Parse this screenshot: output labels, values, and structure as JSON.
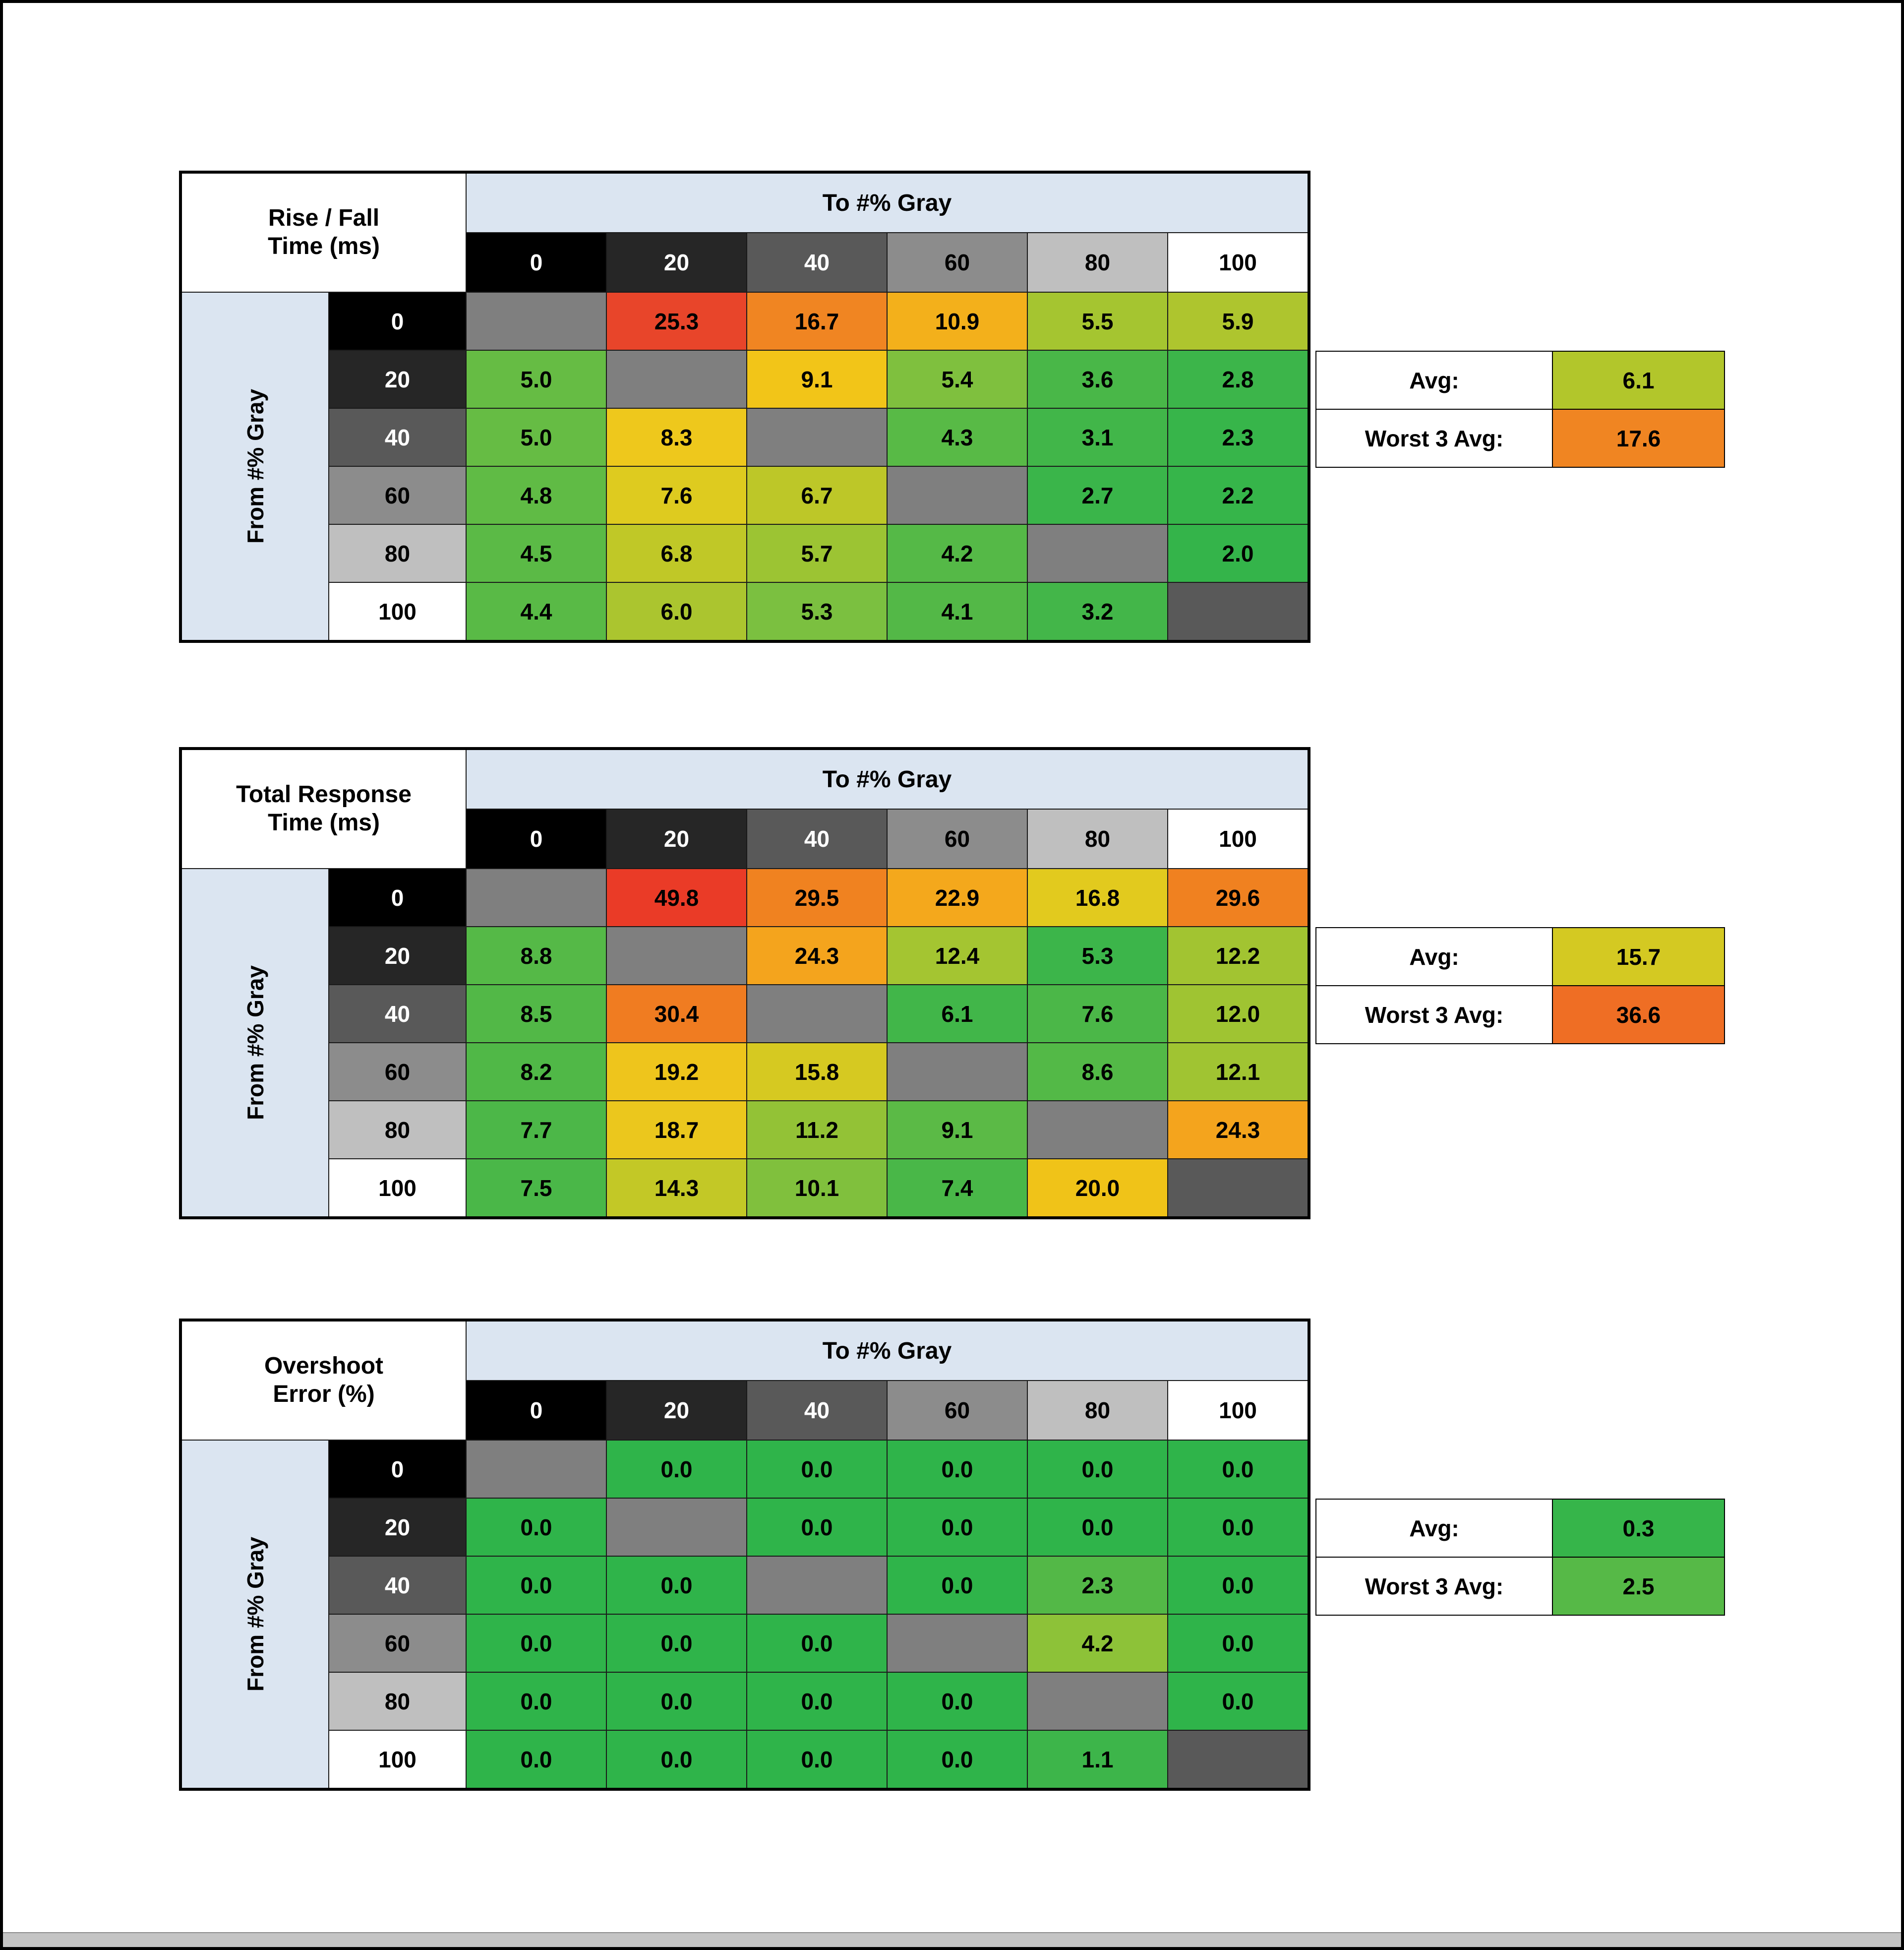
{
  "style": {
    "band_bg": "#dbe5f1",
    "header_steps_bg": [
      "#000000",
      "#262626",
      "#595959",
      "#8c8c8c",
      "#bfbfbf",
      "#ffffff"
    ],
    "header_steps_fg": [
      "#ffffff",
      "#ffffff",
      "#ffffff",
      "#000000",
      "#000000",
      "#000000"
    ],
    "diagonal_bg": [
      "#7f7f7f",
      "#7f7f7f",
      "#7f7f7f",
      "#7f7f7f",
      "#7f7f7f",
      "#595959"
    ],
    "grid_line": "#1a1a1a",
    "outer_border": "#000000",
    "bottom_strip": "#c4c4c4"
  },
  "shared": {
    "to_axis_label": "To #% Gray",
    "from_axis_label": "From #% Gray",
    "gray_levels": [
      "0",
      "20",
      "40",
      "60",
      "80",
      "100"
    ],
    "avg_label": "Avg:",
    "worst_label": "Worst 3 Avg:"
  },
  "chart_data": [
    {
      "type": "heatmap",
      "title": "Rise / Fall Time (ms)",
      "title_lines": [
        "Rise / Fall",
        "Time (ms)"
      ],
      "x_label": "To #% Gray",
      "y_label": "From #% Gray",
      "columns": [
        0,
        20,
        40,
        60,
        80,
        100
      ],
      "rows": [
        0,
        20,
        40,
        60,
        80,
        100
      ],
      "values": [
        [
          null,
          25.3,
          16.7,
          10.9,
          5.5,
          5.9
        ],
        [
          5.0,
          null,
          9.1,
          5.4,
          3.6,
          2.8
        ],
        [
          5.0,
          8.3,
          null,
          4.3,
          3.1,
          2.3
        ],
        [
          4.8,
          7.6,
          6.7,
          null,
          2.7,
          2.2
        ],
        [
          4.5,
          6.8,
          5.7,
          4.2,
          null,
          2.0
        ],
        [
          4.4,
          6.0,
          5.3,
          4.1,
          3.2,
          null
        ]
      ],
      "cell_colors": [
        [
          null,
          "#e8452a",
          "#f08522",
          "#f3b01b",
          "#a5c530",
          "#aec52e"
        ],
        [
          "#66bc44",
          null,
          "#f2c518",
          "#7fc03e",
          "#49b748",
          "#3cb54a"
        ],
        [
          "#66bc44",
          "#eec81c",
          null,
          "#58ba46",
          "#41b649",
          "#37b54a"
        ],
        [
          "#60bb45",
          "#decb1f",
          "#bdc728",
          null,
          "#3ab54a",
          "#36b54a"
        ],
        [
          "#5bba46",
          "#c0c827",
          "#9cc433",
          "#55b947",
          null,
          "#34b44a"
        ],
        [
          "#59ba46",
          "#abc52f",
          "#7bc040",
          "#53b847",
          "#43b649",
          null
        ]
      ],
      "summary": {
        "avg": 6.1,
        "avg_color": "#b2c62b",
        "worst3_avg": 17.6,
        "worst_color": "#f08522"
      }
    },
    {
      "type": "heatmap",
      "title": "Total Response Time (ms)",
      "title_lines": [
        "Total Response",
        "Time (ms)"
      ],
      "x_label": "To #% Gray",
      "y_label": "From #% Gray",
      "columns": [
        0,
        20,
        40,
        60,
        80,
        100
      ],
      "rows": [
        0,
        20,
        40,
        60,
        80,
        100
      ],
      "values": [
        [
          null,
          49.8,
          29.5,
          22.9,
          16.8,
          29.6
        ],
        [
          8.8,
          null,
          24.3,
          12.4,
          5.3,
          12.2
        ],
        [
          8.5,
          30.4,
          null,
          6.1,
          7.6,
          12.0
        ],
        [
          8.2,
          19.2,
          15.8,
          null,
          8.6,
          12.1
        ],
        [
          7.7,
          18.7,
          11.2,
          9.1,
          null,
          24.3
        ],
        [
          7.5,
          14.3,
          10.1,
          7.4,
          20.0,
          null
        ]
      ],
      "cell_colors": [
        [
          null,
          "#ea3b27",
          "#f08220",
          "#f4a81c",
          "#e2ca1e",
          "#f08120"
        ],
        [
          "#55b947",
          null,
          "#f4a41d",
          "#a4c531",
          "#3cb54a",
          "#a2c431"
        ],
        [
          "#52b847",
          "#f07c21",
          null,
          "#41b649",
          "#4bb748",
          "#9fc432"
        ],
        [
          "#50b847",
          "#eec51c",
          "#d6c921",
          null,
          "#53b947",
          "#a0c432"
        ],
        [
          "#4cb748",
          "#ebc71d",
          "#93c236",
          "#5bba46",
          null,
          "#f4a41d"
        ],
        [
          "#4ab748",
          "#c3c826",
          "#80c03d",
          "#49b748",
          "#f0c318",
          null
        ]
      ],
      "summary": {
        "avg": 15.7,
        "avg_color": "#d4c922",
        "worst3_avg": 36.6,
        "worst_color": "#ef6e24"
      }
    },
    {
      "type": "heatmap",
      "title": "Overshoot Error (%)",
      "title_lines": [
        "Overshoot",
        "Error (%)"
      ],
      "x_label": "To #% Gray",
      "y_label": "From #% Gray",
      "columns": [
        0,
        20,
        40,
        60,
        80,
        100
      ],
      "rows": [
        0,
        20,
        40,
        60,
        80,
        100
      ],
      "values": [
        [
          null,
          0.0,
          0.0,
          0.0,
          0.0,
          0.0
        ],
        [
          0.0,
          null,
          0.0,
          0.0,
          0.0,
          0.0
        ],
        [
          0.0,
          0.0,
          null,
          0.0,
          2.3,
          0.0
        ],
        [
          0.0,
          0.0,
          0.0,
          null,
          4.2,
          0.0
        ],
        [
          0.0,
          0.0,
          0.0,
          0.0,
          null,
          0.0
        ],
        [
          0.0,
          0.0,
          0.0,
          0.0,
          1.1,
          null
        ]
      ],
      "cell_colors": [
        [
          null,
          "#2fb44a",
          "#2fb44a",
          "#2fb44a",
          "#2fb44a",
          "#2fb44a"
        ],
        [
          "#2fb44a",
          null,
          "#2fb44a",
          "#2fb44a",
          "#2fb44a",
          "#2fb44a"
        ],
        [
          "#2fb44a",
          "#2fb44a",
          null,
          "#2fb44a",
          "#53b847",
          "#2fb44a"
        ],
        [
          "#2fb44a",
          "#2fb44a",
          "#2fb44a",
          null,
          "#8dc238",
          "#2fb44a"
        ],
        [
          "#2fb44a",
          "#2fb44a",
          "#2fb44a",
          "#2fb44a",
          null,
          "#2fb44a"
        ],
        [
          "#2fb44a",
          "#2fb44a",
          "#2fb44a",
          "#2fb44a",
          "#3db54a",
          null
        ]
      ],
      "summary": {
        "avg": 0.3,
        "avg_color": "#36b54a",
        "worst3_avg": 2.5,
        "worst_color": "#56b947"
      }
    }
  ]
}
